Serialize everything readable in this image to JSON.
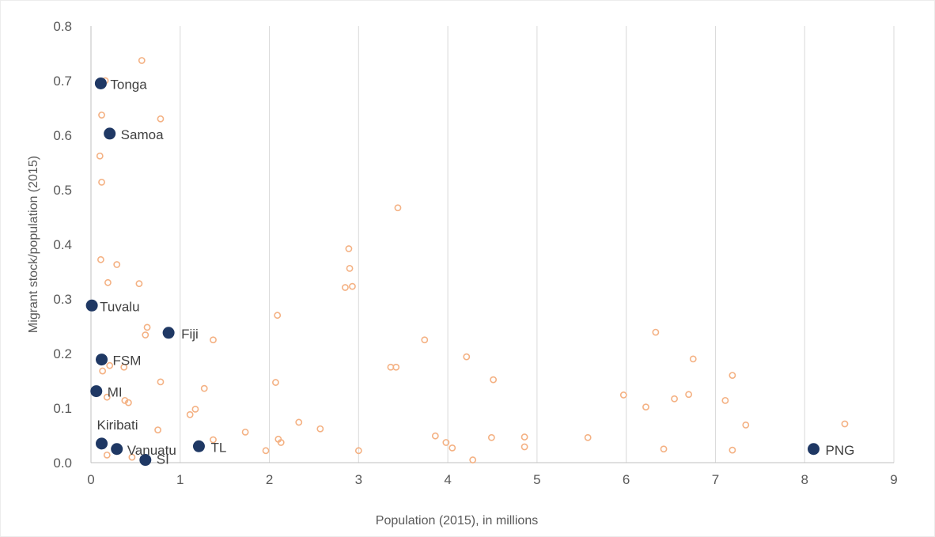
{
  "chart_data": {
    "type": "scatter",
    "xlabel": "Population (2015), in millions",
    "ylabel": "Migrant stock/population (2015)",
    "xlim": [
      0,
      9
    ],
    "ylim": [
      0,
      0.8
    ],
    "x_ticks": [
      "0",
      "1",
      "2",
      "3",
      "4",
      "5",
      "6",
      "7",
      "8",
      "9"
    ],
    "y_ticks": [
      "0.0",
      "0.1",
      "0.2",
      "0.3",
      "0.4",
      "0.5",
      "0.6",
      "0.7",
      "0.8"
    ],
    "grid": "vertical",
    "colors": {
      "other": "#f4b183",
      "highlight": "#1f3864"
    },
    "highlighted": [
      {
        "label": "Tonga",
        "x": 0.11,
        "y": 0.695
      },
      {
        "label": "Samoa",
        "x": 0.21,
        "y": 0.603
      },
      {
        "label": "Tuvalu",
        "x": 0.01,
        "y": 0.288
      },
      {
        "label": "Fiji",
        "x": 0.87,
        "y": 0.238
      },
      {
        "label": "FSM",
        "x": 0.12,
        "y": 0.189
      },
      {
        "label": "MI",
        "x": 0.06,
        "y": 0.131
      },
      {
        "label": "Kiribati",
        "x": 0.12,
        "y": 0.035
      },
      {
        "label": "Vanuatu",
        "x": 0.29,
        "y": 0.025
      },
      {
        "label": "SI",
        "x": 0.61,
        "y": 0.005
      },
      {
        "label": "TL",
        "x": 1.21,
        "y": 0.03
      },
      {
        "label": "PNG",
        "x": 8.1,
        "y": 0.025
      }
    ],
    "others": [
      [
        0.57,
        0.737
      ],
      [
        0.16,
        0.7
      ],
      [
        0.12,
        0.637
      ],
      [
        0.78,
        0.63
      ],
      [
        0.1,
        0.562
      ],
      [
        0.12,
        0.514
      ],
      [
        0.11,
        0.372
      ],
      [
        0.29,
        0.363
      ],
      [
        0.19,
        0.33
      ],
      [
        0.54,
        0.328
      ],
      [
        0.63,
        0.248
      ],
      [
        0.61,
        0.234
      ],
      [
        1.37,
        0.225
      ],
      [
        0.21,
        0.178
      ],
      [
        0.37,
        0.175
      ],
      [
        0.13,
        0.168
      ],
      [
        0.78,
        0.148
      ],
      [
        1.27,
        0.136
      ],
      [
        0.18,
        0.12
      ],
      [
        0.42,
        0.11
      ],
      [
        0.38,
        0.114
      ],
      [
        1.17,
        0.098
      ],
      [
        1.11,
        0.088
      ],
      [
        1.37,
        0.042
      ],
      [
        0.75,
        0.06
      ],
      [
        0.18,
        0.014
      ],
      [
        0.46,
        0.01
      ],
      [
        1.73,
        0.056
      ],
      [
        1.96,
        0.022
      ],
      [
        2.1,
        0.043
      ],
      [
        2.13,
        0.037
      ],
      [
        2.33,
        0.074
      ],
      [
        2.57,
        0.062
      ],
      [
        2.09,
        0.27
      ],
      [
        2.07,
        0.147
      ],
      [
        2.89,
        0.392
      ],
      [
        2.9,
        0.356
      ],
      [
        2.85,
        0.321
      ],
      [
        2.93,
        0.323
      ],
      [
        3.44,
        0.467
      ],
      [
        3.0,
        0.022
      ],
      [
        3.36,
        0.175
      ],
      [
        3.42,
        0.175
      ],
      [
        3.74,
        0.225
      ],
      [
        3.86,
        0.049
      ],
      [
        3.98,
        0.037
      ],
      [
        4.05,
        0.027
      ],
      [
        4.21,
        0.194
      ],
      [
        4.28,
        0.005
      ],
      [
        4.49,
        0.046
      ],
      [
        4.51,
        0.152
      ],
      [
        4.86,
        0.047
      ],
      [
        4.86,
        0.029
      ],
      [
        5.57,
        0.046
      ],
      [
        5.97,
        0.124
      ],
      [
        6.22,
        0.102
      ],
      [
        6.33,
        0.239
      ],
      [
        6.42,
        0.025
      ],
      [
        6.54,
        0.117
      ],
      [
        6.7,
        0.125
      ],
      [
        6.75,
        0.19
      ],
      [
        7.11,
        0.114
      ],
      [
        7.19,
        0.16
      ],
      [
        7.19,
        0.023
      ],
      [
        7.34,
        0.069
      ],
      [
        8.45,
        0.071
      ]
    ]
  }
}
